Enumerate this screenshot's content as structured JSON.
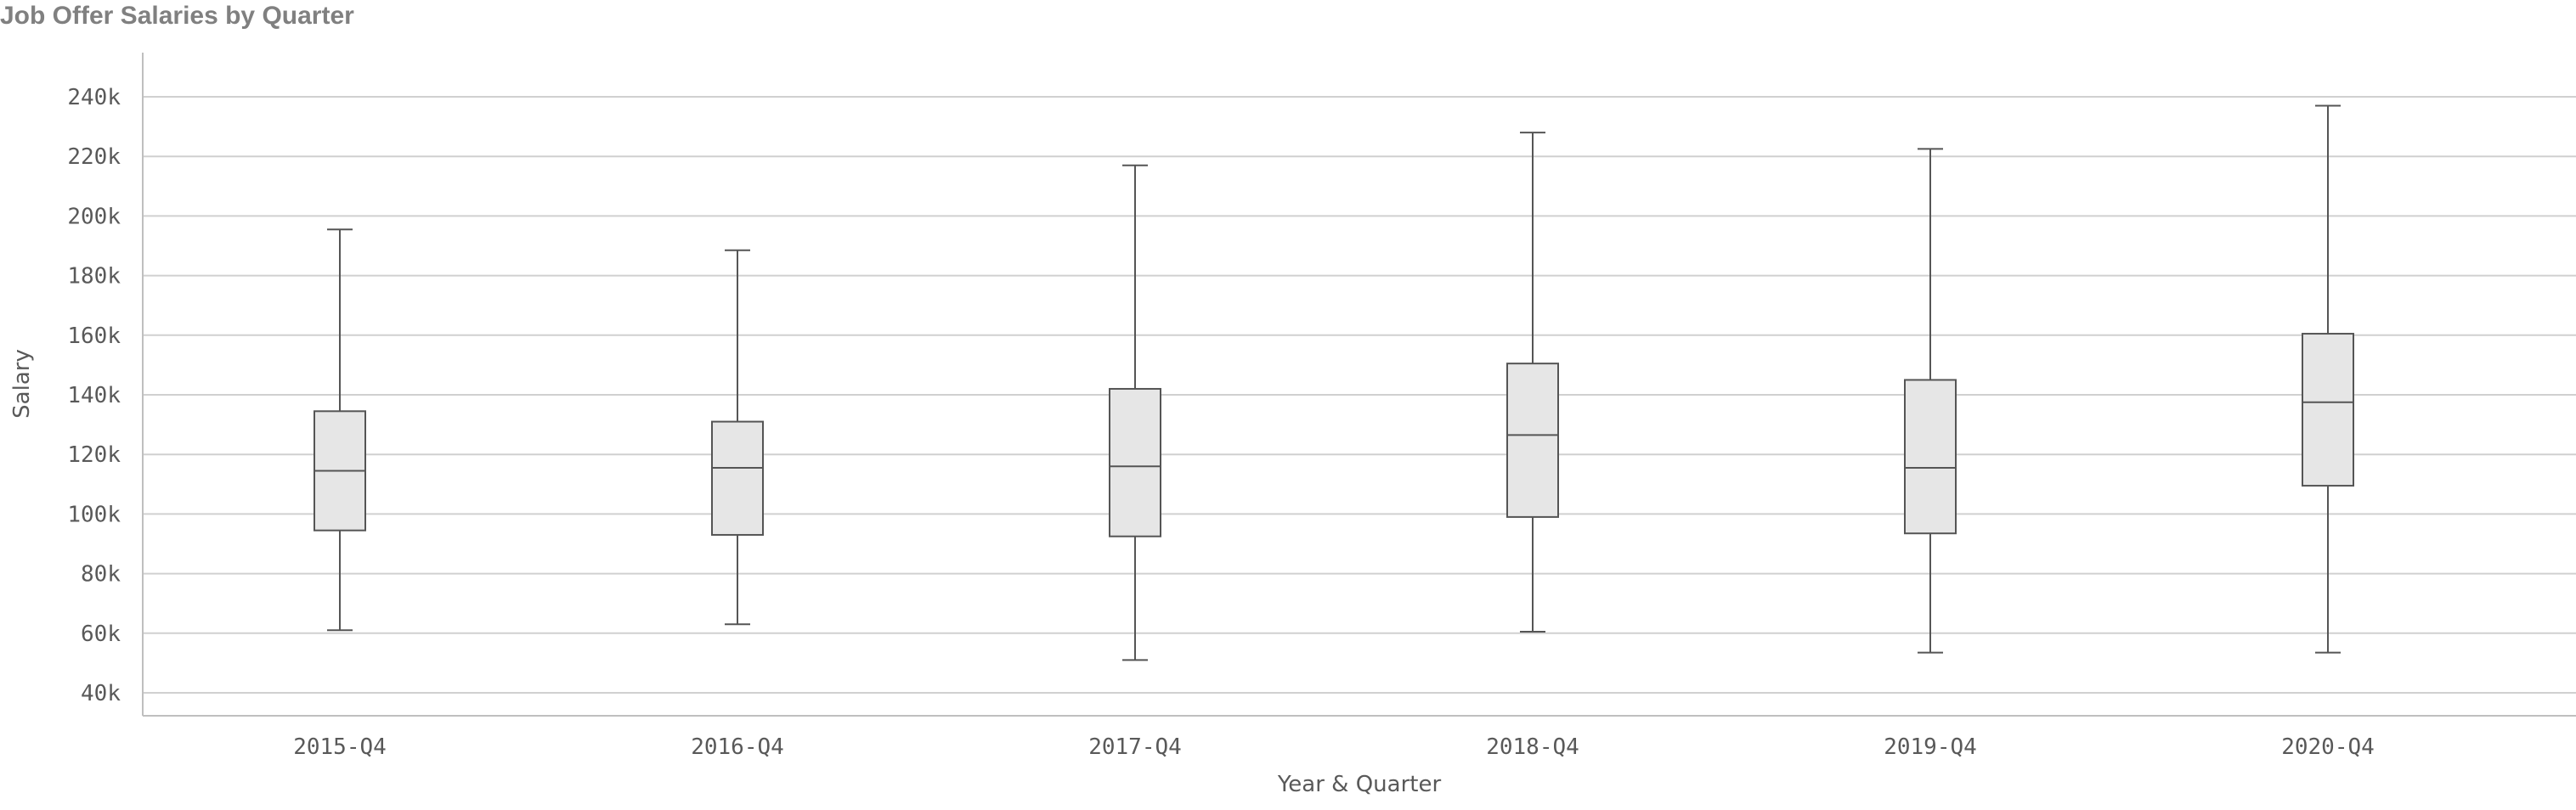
{
  "chart_data": {
    "type": "boxplot",
    "title": "Job Offer Salaries by Quarter",
    "xlabel": "Year & Quarter",
    "ylabel": "Salary",
    "ylim": [
      40000,
      240000
    ],
    "yticks": [
      40000,
      60000,
      80000,
      100000,
      120000,
      140000,
      160000,
      180000,
      200000,
      220000,
      240000
    ],
    "ytick_labels": [
      "40k",
      "60k",
      "80k",
      "100k",
      "120k",
      "140k",
      "160k",
      "180k",
      "200k",
      "220k",
      "240k"
    ],
    "grid": true,
    "categories": [
      "2015-Q4",
      "2016-Q4",
      "2017-Q4",
      "2018-Q4",
      "2019-Q4",
      "2020-Q4"
    ],
    "boxes": [
      {
        "min": 61000,
        "q1": 94500,
        "median": 114500,
        "q3": 134500,
        "max": 195500
      },
      {
        "min": 63000,
        "q1": 93000,
        "median": 115500,
        "q3": 131000,
        "max": 188500
      },
      {
        "min": 51000,
        "q1": 92500,
        "median": 116000,
        "q3": 142000,
        "max": 217000
      },
      {
        "min": 60500,
        "q1": 99000,
        "median": 126500,
        "q3": 150500,
        "max": 228000
      },
      {
        "min": 53500,
        "q1": 93500,
        "median": 115500,
        "q3": 145000,
        "max": 222500
      },
      {
        "min": 53500,
        "q1": 109500,
        "median": 137500,
        "q3": 160500,
        "max": 237000
      }
    ],
    "colors": {
      "box_fill": "#e6e6e6",
      "box_stroke": "#555555",
      "grid": "#d0d0d0",
      "axis": "#bfbfbf"
    }
  }
}
